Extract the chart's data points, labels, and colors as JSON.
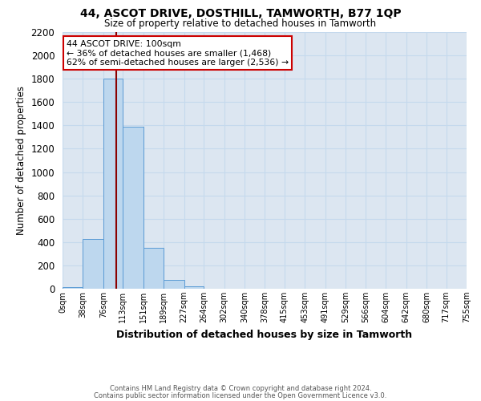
{
  "title": "44, ASCOT DRIVE, DOSTHILL, TAMWORTH, B77 1QP",
  "subtitle": "Size of property relative to detached houses in Tamworth",
  "xlabel": "Distribution of detached houses by size in Tamworth",
  "ylabel": "Number of detached properties",
  "bin_edges": [
    0,
    38,
    76,
    113,
    151,
    189,
    227,
    264,
    302,
    340,
    378,
    415,
    453,
    491,
    529,
    566,
    604,
    642,
    680,
    717,
    755
  ],
  "bar_heights": [
    15,
    425,
    1800,
    1390,
    350,
    75,
    22,
    0,
    0,
    0,
    0,
    0,
    0,
    0,
    0,
    0,
    0,
    0,
    0,
    0
  ],
  "bar_color": "#bdd7ee",
  "bar_edgecolor": "#5b9bd5",
  "grid_color": "#c5d9ed",
  "bg_color": "#dce6f1",
  "vline_x": 100,
  "vline_color": "#8b0000",
  "ylim": [
    0,
    2200
  ],
  "yticks": [
    0,
    200,
    400,
    600,
    800,
    1000,
    1200,
    1400,
    1600,
    1800,
    2000,
    2200
  ],
  "annotation_title": "44 ASCOT DRIVE: 100sqm",
  "annotation_line1": "← 36% of detached houses are smaller (1,468)",
  "annotation_line2": "62% of semi-detached houses are larger (2,536) →",
  "annotation_box_color": "#ffffff",
  "annotation_border_color": "#cc0000",
  "footnote1": "Contains HM Land Registry data © Crown copyright and database right 2024.",
  "footnote2": "Contains public sector information licensed under the Open Government Licence v3.0.",
  "tick_labels": [
    "0sqm",
    "38sqm",
    "76sqm",
    "113sqm",
    "151sqm",
    "189sqm",
    "227sqm",
    "264sqm",
    "302sqm",
    "340sqm",
    "378sqm",
    "415sqm",
    "453sqm",
    "491sqm",
    "529sqm",
    "566sqm",
    "604sqm",
    "642sqm",
    "680sqm",
    "717sqm",
    "755sqm"
  ]
}
